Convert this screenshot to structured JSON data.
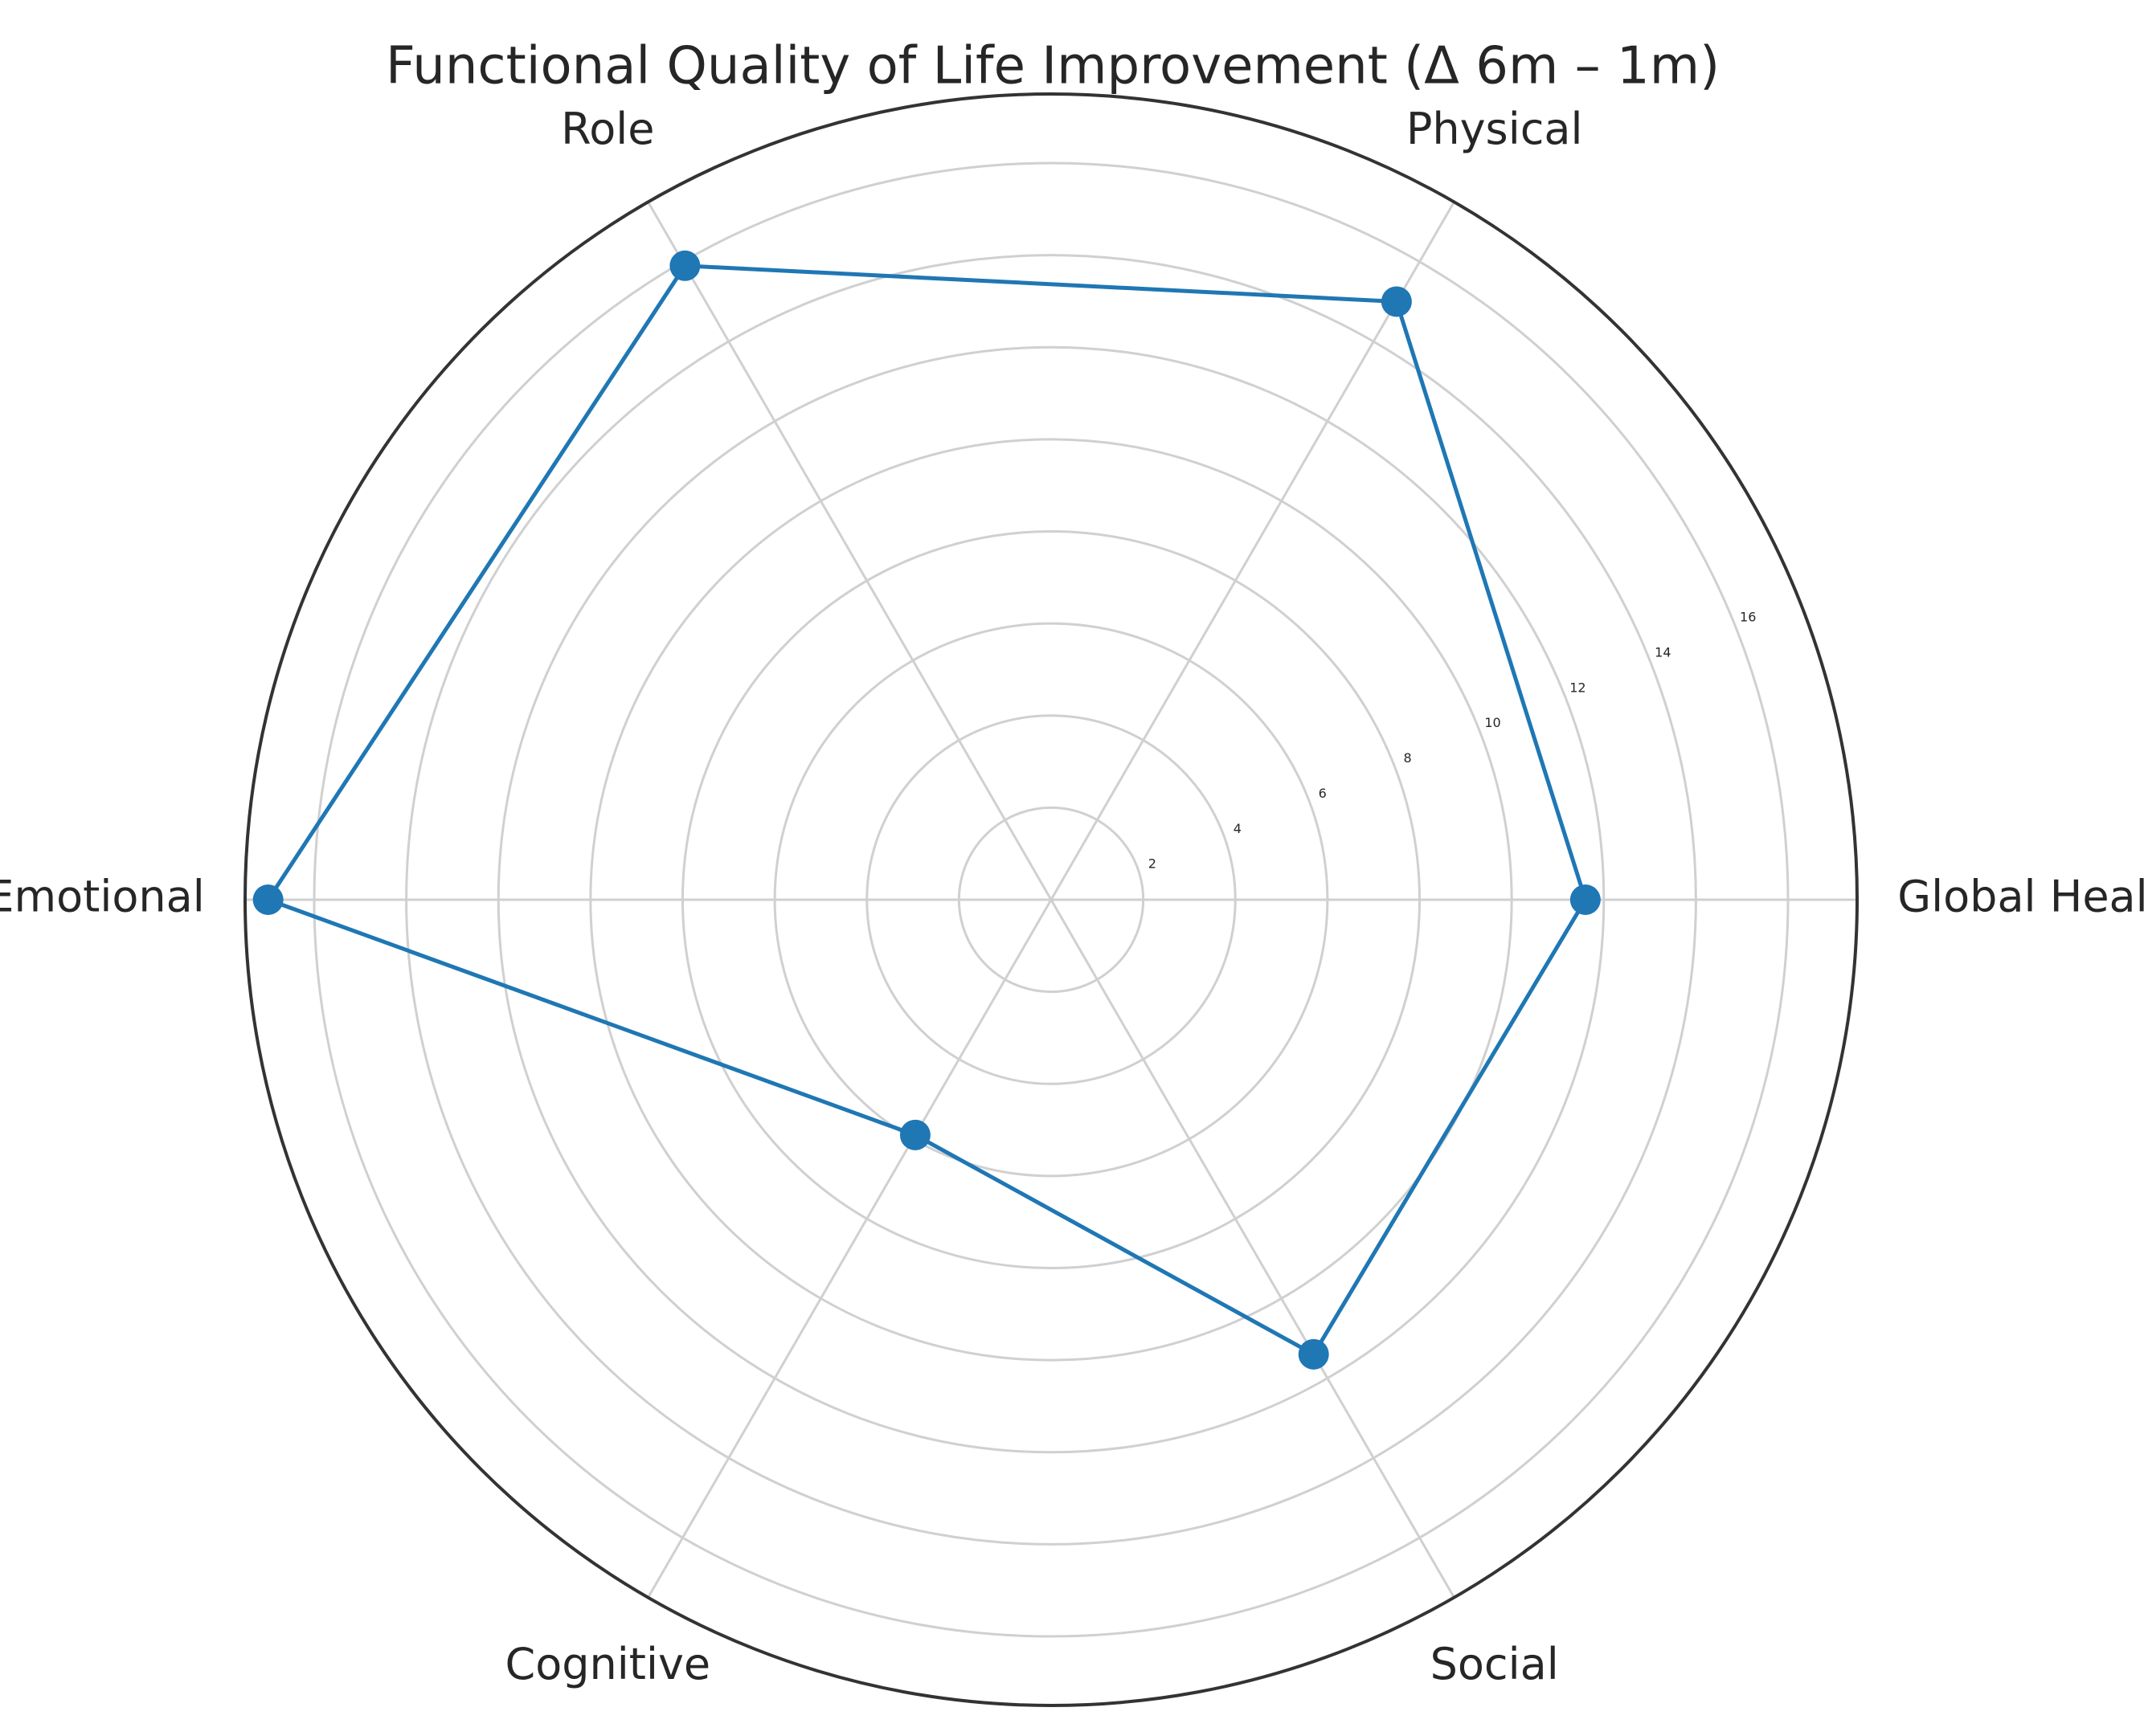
{
  "chart_data": {
    "type": "radar",
    "title": "Functional Quality of Life Improvement (Δ 6m – 1m)",
    "categories": [
      "Global Health",
      "Physical",
      "Role",
      "Emotional",
      "Cognitive",
      "Social"
    ],
    "values": [
      11.6,
      15.0,
      15.9,
      17.0,
      5.9,
      11.4
    ],
    "color": "#1f77b4",
    "ylim": [
      0,
      17.5
    ],
    "yticks": [
      2,
      4,
      6,
      8,
      10,
      12,
      14,
      16
    ],
    "grid": true
  }
}
